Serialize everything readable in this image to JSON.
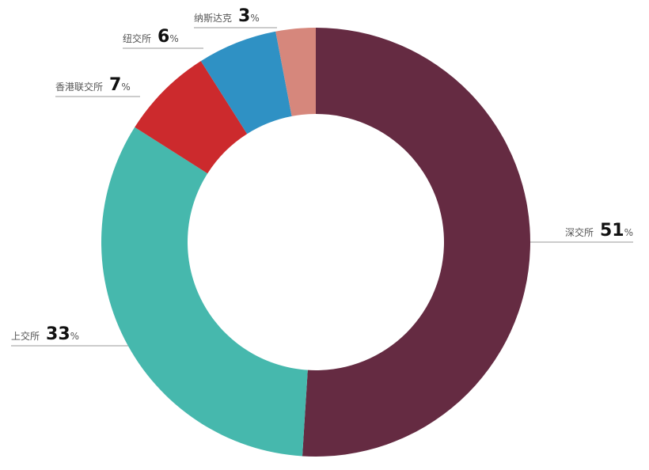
{
  "chart_data": {
    "type": "donut",
    "unit": "%",
    "categories": [
      "深交所",
      "上交所",
      "香港联交所",
      "纽交所",
      "纳斯达克"
    ],
    "values": [
      51,
      33,
      7,
      6,
      3
    ],
    "colors": [
      "#652b42",
      "#46b8ad",
      "#cc2a2d",
      "#2f91c4",
      "#d6877c"
    ]
  }
}
